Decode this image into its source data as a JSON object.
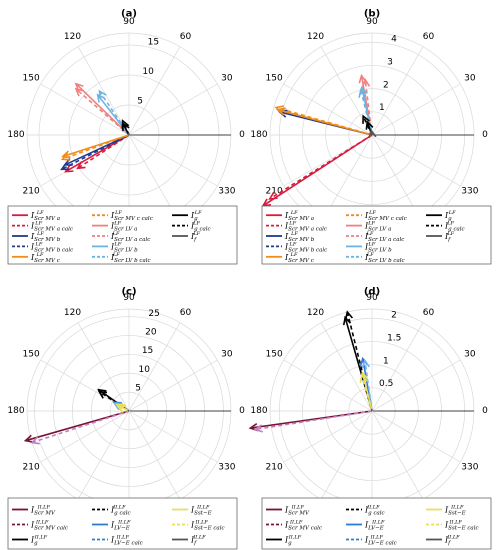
{
  "chart_data": [
    {
      "type": "polar-phasor",
      "title": "(a)",
      "rmax": 17,
      "rlabels": [
        "5",
        "10",
        "15"
      ],
      "rvals": [
        5,
        10,
        15
      ],
      "alabels": [
        "90",
        "120",
        "150",
        "180",
        "210",
        "330",
        "0",
        "30",
        "60"
      ],
      "series": [
        {
          "name": "I Scr MV a LF",
          "color": "#d81b3c",
          "dash": "",
          "angle": 210,
          "magnitude": 12.2
        },
        {
          "name": "I Scr MV a calc LF",
          "color": "#d81b3c",
          "dash": "4,3",
          "angle": 213,
          "magnitude": 10.2
        },
        {
          "name": "I Scr MV b LF",
          "color": "#1f3a8f",
          "dash": "",
          "angle": 205,
          "magnitude": 11.8
        },
        {
          "name": "I Scr MV b calc LF",
          "color": "#1f3a8f",
          "dash": "4,3",
          "angle": 207,
          "magnitude": 12.6
        },
        {
          "name": "I Scr MV c LF",
          "color": "#f08c1a",
          "dash": "",
          "angle": 198,
          "magnitude": 11.6
        },
        {
          "name": "I Scr MV c calc LF",
          "color": "#f08c1a",
          "dash": "4,3",
          "angle": 200,
          "magnitude": 11.8
        },
        {
          "name": "I Scr LV a LF",
          "color": "#f08080",
          "dash": "",
          "angle": 136,
          "magnitude": 12.3
        },
        {
          "name": "I Scr LV a calc LF",
          "color": "#f08080",
          "dash": "4,3",
          "angle": 139,
          "magnitude": 11.7
        },
        {
          "name": "I Scr LV b LF",
          "color": "#6cb4e4",
          "dash": "",
          "angle": 128,
          "magnitude": 8.5
        },
        {
          "name": "I Scr LV b calc LF",
          "color": "#6cb4e4",
          "dash": "4,3",
          "angle": 124,
          "magnitude": 8.8
        },
        {
          "name": "I g LF",
          "color": "#000000",
          "dash": "",
          "angle": 118,
          "magnitude": 2.2
        },
        {
          "name": "I g calc LF",
          "color": "#000000",
          "dash": "4,3",
          "angle": 114,
          "magnitude": 2.6
        },
        {
          "name": "I f LF",
          "color": "#555555",
          "dash": "",
          "angle": 120,
          "magnitude": 0.3
        }
      ],
      "legend": [
        [
          "Scr MV a",
          "#d81b3c",
          ""
        ],
        [
          "Scr MV c calc",
          "#f08c1a",
          "3,2"
        ],
        [
          "g",
          "#000000",
          ""
        ],
        [
          "Scr MV a calc",
          "#d81b3c",
          "3,2"
        ],
        [
          "Scr LV a",
          "#f08080",
          ""
        ],
        [
          "g calc",
          "#000000",
          "3,2"
        ],
        [
          "Scr MV b",
          "#1f3a8f",
          ""
        ],
        [
          "Scr LV a calc",
          "#f08080",
          "3,2"
        ],
        [
          "f",
          "#555555",
          ""
        ],
        [
          "Scr MV b calc",
          "#1f3a8f",
          "3,2"
        ],
        [
          "Scr LV b",
          "#6cb4e4",
          ""
        ],
        [
          "",
          null,
          ""
        ],
        [
          "Scr MV c",
          "#f08c1a",
          ""
        ],
        [
          "Scr LV b calc",
          "#6cb4e4",
          "3,2"
        ],
        [
          "",
          null,
          ""
        ]
      ],
      "legend_sup": "LF"
    },
    {
      "type": "polar-phasor",
      "title": "(b)",
      "rmax": 4.4,
      "rlabels": [
        "1",
        "2",
        "3",
        "4"
      ],
      "rvals": [
        1,
        2,
        3,
        4
      ],
      "alabels": [
        "90",
        "120",
        "150",
        "180",
        "210",
        "330",
        "0",
        "30",
        "60"
      ],
      "series": [
        {
          "name": "I Scr MV a LF",
          "color": "#d81b3c",
          "dash": "",
          "angle": 213,
          "magnitude": 5.6
        },
        {
          "name": "I Scr MV a calc LF",
          "color": "#d81b3c",
          "dash": "4,3",
          "angle": 212,
          "magnitude": 5.2
        },
        {
          "name": "I Scr MV b LF",
          "color": "#1f3a8f",
          "dash": "",
          "angle": 166,
          "magnitude": 4.1
        },
        {
          "name": "I Scr MV b calc LF",
          "color": "#1f3a8f",
          "dash": "4,3",
          "angle": 165,
          "magnitude": 4.2
        },
        {
          "name": "I Scr MV c LF",
          "color": "#f08c1a",
          "dash": "",
          "angle": 165,
          "magnitude": 4.2
        },
        {
          "name": "I Scr MV c calc LF",
          "color": "#f08c1a",
          "dash": "4,3",
          "angle": 164,
          "magnitude": 4.3
        },
        {
          "name": "I Scr LV a LF",
          "color": "#f08080",
          "dash": "",
          "angle": 100,
          "magnitude": 2.6
        },
        {
          "name": "I Scr LV a calc LF",
          "color": "#f08080",
          "dash": "4,3",
          "angle": 97,
          "magnitude": 2.4
        },
        {
          "name": "I Scr LV b LF",
          "color": "#6cb4e4",
          "dash": "",
          "angle": 102,
          "magnitude": 2.1
        },
        {
          "name": "I Scr LV b calc LF",
          "color": "#6cb4e4",
          "dash": "4,3",
          "angle": 104,
          "magnitude": 2.0
        },
        {
          "name": "I g LF",
          "color": "#000000",
          "dash": "",
          "angle": 110,
          "magnitude": 0.6
        },
        {
          "name": "I g calc LF",
          "color": "#000000",
          "dash": "4,3",
          "angle": 115,
          "magnitude": 0.9
        },
        {
          "name": "I f LF",
          "color": "#555555",
          "dash": "",
          "angle": 100,
          "magnitude": 0.2
        }
      ],
      "legend": [
        [
          "Scr MV a",
          "#d81b3c",
          ""
        ],
        [
          "Scr MV c calc",
          "#f08c1a",
          "3,2"
        ],
        [
          "g",
          "#000000",
          ""
        ],
        [
          "Scr MV a calc",
          "#d81b3c",
          "3,2"
        ],
        [
          "Scr LV a",
          "#f08080",
          ""
        ],
        [
          "g calc",
          "#000000",
          "3,2"
        ],
        [
          "Scr MV b",
          "#1f3a8f",
          ""
        ],
        [
          "Scr LV a calc",
          "#f08080",
          "3,2"
        ],
        [
          "f",
          "#555555",
          ""
        ],
        [
          "Scr MV b calc",
          "#1f3a8f",
          "3,2"
        ],
        [
          "Scr LV b",
          "#6cb4e4",
          ""
        ],
        [
          "",
          null,
          ""
        ],
        [
          "Scr MV c",
          "#f08c1a",
          ""
        ],
        [
          "Scr LV b calc",
          "#6cb4e4",
          "3,2"
        ],
        [
          "",
          null,
          ""
        ]
      ],
      "legend_sup": "LF"
    },
    {
      "type": "polar-phasor",
      "title": "(c)",
      "rmax": 27,
      "rlabels": [
        "5",
        "10",
        "15",
        "20",
        "25"
      ],
      "rvals": [
        5,
        10,
        15,
        20,
        25
      ],
      "alabels": [
        "90",
        "120",
        "150",
        "180",
        "210",
        "330",
        "0",
        "30",
        "60"
      ],
      "series": [
        {
          "name": "I Scr MV II,LF",
          "color": "#7a1233",
          "dash": "",
          "angle": 196,
          "magnitude": 28.5
        },
        {
          "name": "I Scr MV calc II,LF",
          "color": "#c080c0",
          "dash": "4,3",
          "angle": 198,
          "magnitude": 27.0
        },
        {
          "name": "I g II,LF",
          "color": "#000000",
          "dash": "",
          "angle": 145,
          "magnitude": 9.8
        },
        {
          "name": "I g calc II,LF",
          "color": "#000000",
          "dash": "4,3",
          "angle": 147,
          "magnitude": 9.4
        },
        {
          "name": "I LV-E II,LF",
          "color": "#2e7bd6",
          "dash": "",
          "angle": 150,
          "magnitude": 4.6
        },
        {
          "name": "I LV-E calc II,LF",
          "color": "#7ab0ee",
          "dash": "4,3",
          "angle": 152,
          "magnitude": 4.3
        },
        {
          "name": "I Sst-E II,LF",
          "color": "#e8e05a",
          "dash": "",
          "angle": 152,
          "magnitude": 3.6
        },
        {
          "name": "I Sst-E calc II,LF",
          "color": "#e8e05a",
          "dash": "4,3",
          "angle": 158,
          "magnitude": 3.1
        },
        {
          "name": "I f II,LF",
          "color": "#555555",
          "dash": "",
          "angle": 150,
          "magnitude": 0.4
        }
      ],
      "legend": [
        [
          "Scr MV",
          "#7a1233",
          ""
        ],
        [
          "g calc",
          "#000000",
          "3,2"
        ],
        [
          "Sst−E",
          "#e8e05a",
          ""
        ],
        [
          "Scr MV calc",
          "#7a1233",
          "3,2"
        ],
        [
          "LV−E",
          "#2e7bd6",
          ""
        ],
        [
          "Sst−E calc",
          "#e8e05a",
          "3,2"
        ],
        [
          "g",
          "#000000",
          ""
        ],
        [
          "LV−E calc",
          "#2e7bd6",
          "3,2"
        ],
        [
          "f",
          "#555555",
          ""
        ]
      ],
      "legend_sup": "II,LF"
    },
    {
      "type": "polar-phasor",
      "title": "(d)",
      "rmax": 2.2,
      "rlabels": [
        "0.5",
        "1",
        "1.5",
        "2"
      ],
      "rvals": [
        0.5,
        1,
        1.5,
        2
      ],
      "alabels": [
        "90",
        "120",
        "150",
        "180",
        "210",
        "330",
        "0",
        "30",
        "60"
      ],
      "series": [
        {
          "name": "I Scr MV II,LF",
          "color": "#7a1233",
          "dash": "",
          "angle": 188,
          "magnitude": 2.65
        },
        {
          "name": "I Scr MV calc II,LF",
          "color": "#c080c0",
          "dash": "4,3",
          "angle": 189,
          "magnitude": 2.55
        },
        {
          "name": "I g II,LF",
          "color": "#000000",
          "dash": "",
          "angle": 106,
          "magnitude": 2.1
        },
        {
          "name": "I g calc II,LF",
          "color": "#000000",
          "dash": "4,3",
          "angle": 104,
          "magnitude": 2.2
        },
        {
          "name": "I LV-E II,LF",
          "color": "#2e7bd6",
          "dash": "",
          "angle": 100,
          "magnitude": 1.15
        },
        {
          "name": "I LV-E calc II,LF",
          "color": "#7ab0ee",
          "dash": "4,3",
          "angle": 98,
          "magnitude": 1.1
        },
        {
          "name": "I Sst-E II,LF",
          "color": "#e8e05a",
          "dash": "",
          "angle": 104,
          "magnitude": 0.85
        },
        {
          "name": "I Sst-E calc II,LF",
          "color": "#e8e05a",
          "dash": "4,3",
          "angle": 106,
          "magnitude": 0.8
        },
        {
          "name": "I f II,LF",
          "color": "#555555",
          "dash": "",
          "angle": 100,
          "magnitude": 0.05
        }
      ],
      "legend": [
        [
          "Scr MV",
          "#7a1233",
          ""
        ],
        [
          "g calc",
          "#000000",
          "3,2"
        ],
        [
          "Sst−E",
          "#e8e05a",
          ""
        ],
        [
          "Scr MV calc",
          "#7a1233",
          "3,2"
        ],
        [
          "LV−E",
          "#2e7bd6",
          ""
        ],
        [
          "Sst−E calc",
          "#e8e05a",
          "3,2"
        ],
        [
          "g",
          "#000000",
          ""
        ],
        [
          "LV−E calc",
          "#2e7bd6",
          "3,2"
        ],
        [
          "f",
          "#555555",
          ""
        ]
      ],
      "legend_sup": "II,LF"
    }
  ]
}
